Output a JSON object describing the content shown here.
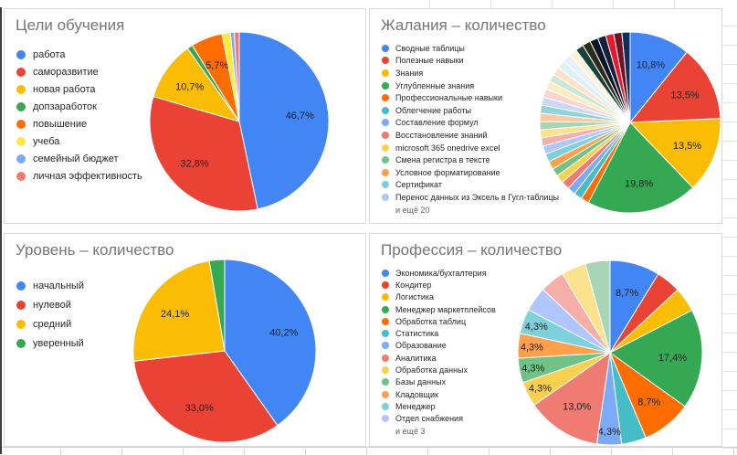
{
  "chart_data": [
    {
      "type": "pie",
      "title": "Цели обучения",
      "legend_position": "left",
      "grid": false,
      "slices": [
        {
          "name": "работа",
          "value": 46.7,
          "pct_label": "46,7%",
          "color": "#4285F4"
        },
        {
          "name": "саморазвитие",
          "value": 32.8,
          "pct_label": "32,8%",
          "color": "#EA4335"
        },
        {
          "name": "новая работа",
          "value": 10.7,
          "pct_label": "10,7%",
          "color": "#FBBC04"
        },
        {
          "name": "допзаработок",
          "value": 1.0,
          "pct_label": "",
          "color": "#34A853"
        },
        {
          "name": "повышение",
          "value": 5.7,
          "pct_label": "5,7%",
          "color": "#FF6D01"
        },
        {
          "name": "учеба",
          "value": 1.5,
          "pct_label": "",
          "color": "#FFE93B"
        },
        {
          "name": "семейный бюджет",
          "value": 0.7,
          "pct_label": "",
          "color": "#7BAAF7"
        },
        {
          "name": "личная эффективность",
          "value": 0.9,
          "pct_label": "",
          "color": "#F07B72"
        }
      ],
      "more_label": null
    },
    {
      "type": "pie",
      "title": "Жалания – количество",
      "legend_position": "left",
      "grid": false,
      "slices": [
        {
          "name": "Сводные таблицы",
          "value": 10.8,
          "pct_label": "10,8%",
          "color": "#4285F4"
        },
        {
          "name": "Полезные навыки",
          "value": 13.5,
          "pct_label": "13,5%",
          "color": "#EA4335"
        },
        {
          "name": "Знания",
          "value": 13.5,
          "pct_label": "13,5%",
          "color": "#FBBC04"
        },
        {
          "name": "Углубленные знания",
          "value": 19.8,
          "pct_label": "19,8%",
          "color": "#34A853"
        },
        {
          "name": "Профессиональные навыки",
          "value": 1.46,
          "pct_label": "",
          "color": "#FF6D01"
        },
        {
          "name": "Облегчение работы",
          "value": 1.46,
          "pct_label": "",
          "color": "#46BDC6"
        },
        {
          "name": "Составление формул",
          "value": 1.46,
          "pct_label": "",
          "color": "#7BAAF7"
        },
        {
          "name": "Восстановление знаний",
          "value": 1.46,
          "pct_label": "",
          "color": "#F07B72"
        },
        {
          "name": "microsoft 365 onedrive excel",
          "value": 1.46,
          "pct_label": "",
          "color": "#FCD04F"
        },
        {
          "name": "Смена регистра в тексте",
          "value": 1.46,
          "pct_label": "",
          "color": "#71C287"
        },
        {
          "name": "Условное форматирование",
          "value": 1.46,
          "pct_label": "",
          "color": "#FFA04D"
        },
        {
          "name": "Сертификат",
          "value": 1.46,
          "pct_label": "",
          "color": "#7CD1DB"
        },
        {
          "name": "Перенос данных из Эксель в Гугл-таблицы",
          "value": 1.46,
          "pct_label": "",
          "color": "#AFC6FF"
        },
        {
          "name": "",
          "value": 1.46,
          "pct_label": "",
          "color": "#F6AEA9"
        },
        {
          "name": "",
          "value": 1.46,
          "pct_label": "",
          "color": "#FBE38E"
        },
        {
          "name": "",
          "value": 1.46,
          "pct_label": "",
          "color": "#A8D5B5"
        },
        {
          "name": "",
          "value": 1.46,
          "pct_label": "",
          "color": "#FFC8A2"
        },
        {
          "name": "",
          "value": 1.46,
          "pct_label": "",
          "color": "#8FD4D9"
        },
        {
          "name": "",
          "value": 1.46,
          "pct_label": "",
          "color": "#C9D7FB"
        },
        {
          "name": "",
          "value": 1.46,
          "pct_label": "",
          "color": "#FAD4D0"
        },
        {
          "name": "",
          "value": 1.46,
          "pct_label": "",
          "color": "#FBEDC2"
        },
        {
          "name": "",
          "value": 1.46,
          "pct_label": "",
          "color": "#CDE8D2"
        },
        {
          "name": "",
          "value": 1.46,
          "pct_label": "",
          "color": "#FFE2C8"
        },
        {
          "name": "",
          "value": 1.46,
          "pct_label": "",
          "color": "#DFF2F3"
        },
        {
          "name": "",
          "value": 1.46,
          "pct_label": "",
          "color": "#E8EFFD"
        },
        {
          "name": "",
          "value": 1.46,
          "pct_label": "",
          "color": "#FDF3D8"
        },
        {
          "name": "",
          "value": 1.46,
          "pct_label": "",
          "color": "#17433B"
        },
        {
          "name": "",
          "value": 1.46,
          "pct_label": "",
          "color": "#2E2A1B"
        },
        {
          "name": "",
          "value": 1.46,
          "pct_label": "",
          "color": "#0C1526"
        },
        {
          "name": "",
          "value": 1.46,
          "pct_label": "",
          "color": "#13203F"
        },
        {
          "name": "",
          "value": 1.46,
          "pct_label": "",
          "color": "#E8192C"
        },
        {
          "name": "",
          "value": 1.46,
          "pct_label": "",
          "color": "#731225"
        },
        {
          "name": "",
          "value": 1.46,
          "pct_label": "",
          "color": "#0F2F5C"
        }
      ],
      "more_label": "и ещё 20"
    },
    {
      "type": "pie",
      "title": "Уровень – количество",
      "legend_position": "left",
      "grid": false,
      "slices": [
        {
          "name": "начальный",
          "value": 40.2,
          "pct_label": "40,2%",
          "color": "#4285F4"
        },
        {
          "name": "нулевой",
          "value": 33.0,
          "pct_label": "33,0%",
          "color": "#EA4335"
        },
        {
          "name": "средний",
          "value": 24.1,
          "pct_label": "24,1%",
          "color": "#FBBC04"
        },
        {
          "name": "уверенный",
          "value": 2.7,
          "pct_label": "",
          "color": "#34A853"
        }
      ],
      "more_label": null
    },
    {
      "type": "pie",
      "title": "Профессия – количество",
      "legend_position": "left",
      "grid": false,
      "slices": [
        {
          "name": "Экономика/бухгалтерия",
          "value": 8.7,
          "pct_label": "8,7%",
          "color": "#4285F4"
        },
        {
          "name": "Кондитер",
          "value": 4.3,
          "pct_label": "",
          "color": "#EA4335"
        },
        {
          "name": "Логистика",
          "value": 4.3,
          "pct_label": "",
          "color": "#FBBC04"
        },
        {
          "name": "Менеджер маркетплейсов",
          "value": 17.4,
          "pct_label": "17,4%",
          "color": "#34A853"
        },
        {
          "name": "Обработка таблиц",
          "value": 8.7,
          "pct_label": "8,7%",
          "color": "#FF6D01"
        },
        {
          "name": "Статистика",
          "value": 4.3,
          "pct_label": "",
          "color": "#46BDC6"
        },
        {
          "name": "Образование",
          "value": 4.3,
          "pct_label": "4,3%",
          "color": "#7BAAF7"
        },
        {
          "name": "Аналитика",
          "value": 13.0,
          "pct_label": "13,0%",
          "color": "#F07B72"
        },
        {
          "name": "Обработка данных",
          "value": 4.3,
          "pct_label": "4,3%",
          "color": "#FCD04F"
        },
        {
          "name": "Базы данных",
          "value": 4.3,
          "pct_label": "4,3%",
          "color": "#71C287"
        },
        {
          "name": "Кладовщик",
          "value": 4.3,
          "pct_label": "4,3%",
          "color": "#FFA04D"
        },
        {
          "name": "Менеджер",
          "value": 4.3,
          "pct_label": "4,3%",
          "color": "#7CD1DB"
        },
        {
          "name": "Отдел снабжения",
          "value": 4.3,
          "pct_label": "",
          "color": "#AFC6FF"
        },
        {
          "name": "",
          "value": 4.3,
          "pct_label": "",
          "color": "#F6AEA9"
        },
        {
          "name": "",
          "value": 4.3,
          "pct_label": "",
          "color": "#FBE38E"
        },
        {
          "name": "",
          "value": 4.3,
          "pct_label": "",
          "color": "#A8D5B5"
        }
      ],
      "more_label": "и ещё 3"
    }
  ]
}
